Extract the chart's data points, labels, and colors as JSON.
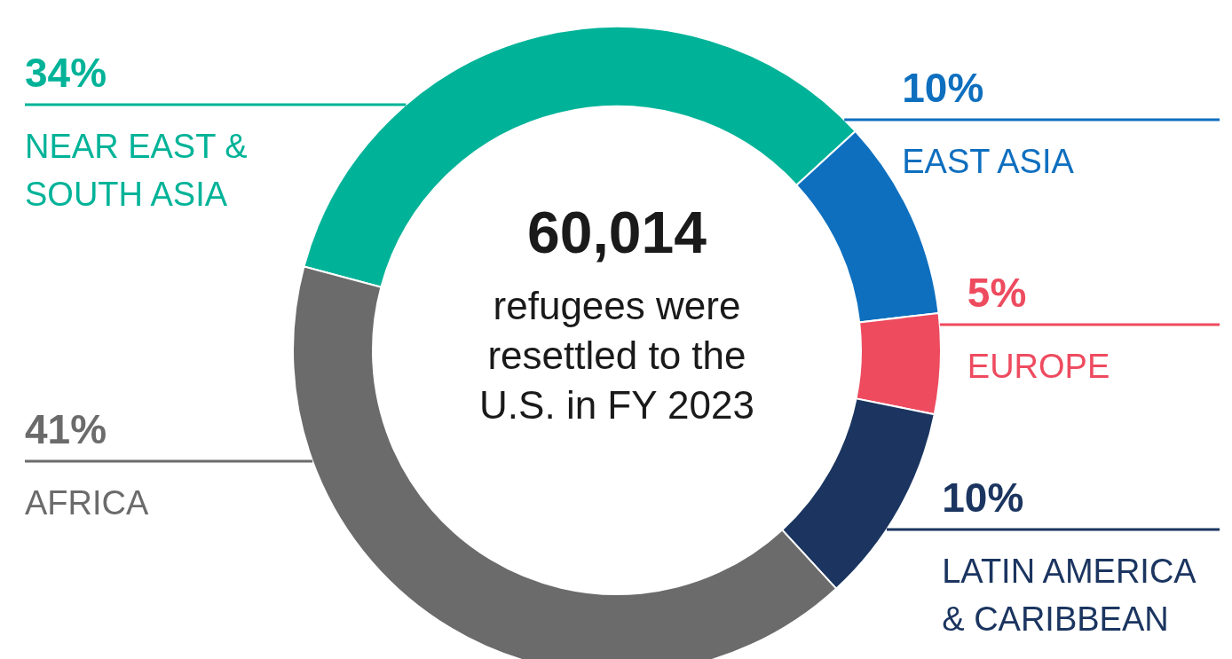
{
  "chart_data": {
    "type": "donut",
    "categories": [
      "NEAR EAST & SOUTH ASIA",
      "EAST ASIA",
      "EUROPE",
      "LATIN AMERICA & CARIBBEAN",
      "AFRICA"
    ],
    "values": [
      34,
      10,
      5,
      10,
      41
    ],
    "colors": [
      "#00b398",
      "#0e6fbf",
      "#ee4b5f",
      "#1b3560",
      "#6b6b6b"
    ],
    "value_labels": [
      "34%",
      "10%",
      "5%",
      "10%",
      "41%"
    ],
    "annotations": [
      "60,014",
      "refugees were resettled to the U.S. in FY 2023"
    ]
  }
}
